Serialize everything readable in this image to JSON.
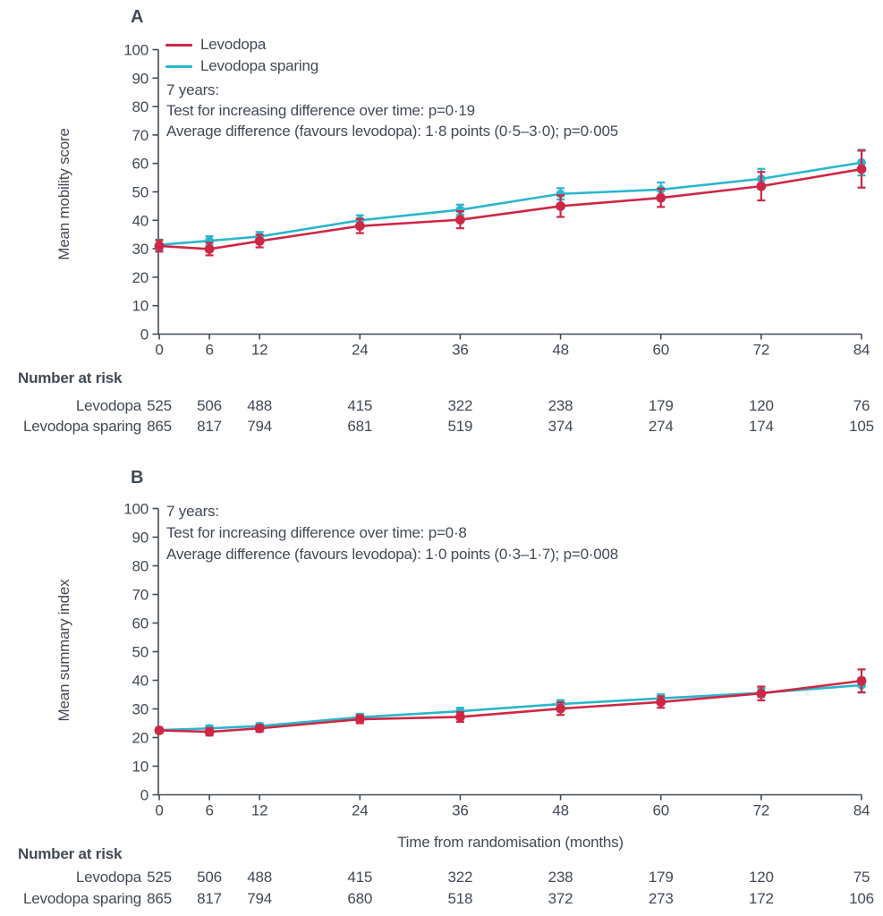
{
  "colors": {
    "levodopa": "#ce2745",
    "levodopa_sparing": "#2ab6ce",
    "text": "#414a55",
    "axis": "#414a55"
  },
  "chart_data": [
    {
      "type": "line",
      "panel_label": "A",
      "ylabel": "Mean mobility score",
      "xlabel": "",
      "ylim": [
        0,
        100
      ],
      "ytick_step": 10,
      "grid": false,
      "legend_position": "top-left",
      "x": [
        0,
        6,
        12,
        24,
        36,
        48,
        60,
        72,
        84
      ],
      "series": [
        {
          "name": "Levodopa",
          "color_key": "levodopa",
          "values": [
            31,
            29.9,
            32.7,
            38,
            40.2,
            45,
            47.9,
            52,
            58
          ],
          "err": [
            2,
            2.2,
            2.2,
            2.5,
            3,
            3.8,
            3.2,
            5,
            6.5
          ]
        },
        {
          "name": "Levodopa sparing",
          "color_key": "levodopa_sparing",
          "values": [
            31.4,
            32.8,
            34.3,
            40,
            43.7,
            49.3,
            50.8,
            54.6,
            60.3
          ],
          "err": [
            1.8,
            1.6,
            1.6,
            1.8,
            1.8,
            2,
            2.5,
            3.5,
            4.5
          ]
        }
      ],
      "annotation": [
        "7 years:",
        "Test for increasing difference over time: p=0·19",
        "Average difference (favours levodopa): 1·8 points (0·5–3·0); p=0·005"
      ],
      "number_at_risk": {
        "title": "Number at risk",
        "rows": [
          {
            "label": "Levodopa",
            "values": [
              525,
              506,
              488,
              415,
              322,
              238,
              179,
              120,
              76
            ]
          },
          {
            "label": "Levodopa sparing",
            "values": [
              865,
              817,
              794,
              681,
              519,
              374,
              274,
              174,
              105
            ]
          }
        ]
      }
    },
    {
      "type": "line",
      "panel_label": "B",
      "ylabel": "Mean summary index",
      "xlabel": "Time from randomisation (months)",
      "ylim": [
        0,
        100
      ],
      "ytick_step": 10,
      "grid": false,
      "legend_position": "none",
      "x": [
        0,
        6,
        12,
        24,
        36,
        48,
        60,
        72,
        84
      ],
      "series": [
        {
          "name": "Levodopa",
          "color_key": "levodopa",
          "values": [
            22.5,
            22,
            23.2,
            26.4,
            27.2,
            30.1,
            32.4,
            35.4,
            39.8
          ],
          "err": [
            0.9,
            1.3,
            1.2,
            1.4,
            1.7,
            2.2,
            2,
            2.4,
            4
          ]
        },
        {
          "name": "Levodopa sparing",
          "color_key": "levodopa_sparing",
          "values": [
            22.6,
            23.2,
            24,
            27.1,
            29.2,
            31.7,
            33.7,
            35.6,
            38.3
          ],
          "err": [
            0.9,
            1,
            1,
            1.2,
            1.2,
            1.4,
            1.4,
            1.5,
            2.6
          ]
        }
      ],
      "annotation": [
        "7 years:",
        "Test for increasing difference over time: p=0·8",
        "Average difference (favours levodopa): 1·0 points (0·3–1·7); p=0·008"
      ],
      "number_at_risk": {
        "title": "Number at risk",
        "rows": [
          {
            "label": "Levodopa",
            "values": [
              525,
              506,
              488,
              415,
              322,
              238,
              179,
              120,
              75
            ]
          },
          {
            "label": "Levodopa sparing",
            "values": [
              865,
              817,
              794,
              680,
              518,
              372,
              273,
              172,
              106
            ]
          }
        ]
      }
    }
  ]
}
